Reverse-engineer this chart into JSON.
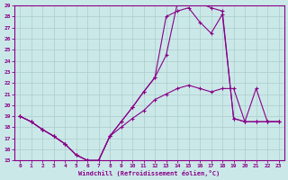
{
  "xlabel": "Windchill (Refroidissement éolien,°C)",
  "xlim": [
    -0.5,
    23.5
  ],
  "ylim": [
    15,
    29
  ],
  "xticks": [
    0,
    1,
    2,
    3,
    4,
    5,
    6,
    7,
    8,
    9,
    10,
    11,
    12,
    13,
    14,
    15,
    16,
    17,
    18,
    19,
    20,
    21,
    22,
    23
  ],
  "yticks": [
    15,
    16,
    17,
    18,
    19,
    20,
    21,
    22,
    23,
    24,
    25,
    26,
    27,
    28,
    29
  ],
  "bg_color": "#cbe8e8",
  "line_color": "#880088",
  "grid_color": "#aacccc",
  "line1_x": [
    0,
    1,
    2,
    3,
    4,
    5,
    6,
    7,
    8,
    9,
    10,
    11,
    12,
    13,
    14,
    15,
    16,
    17,
    18,
    19,
    20,
    21,
    22,
    23
  ],
  "line1_y": [
    19.0,
    18.5,
    17.8,
    17.2,
    16.5,
    15.5,
    15.0,
    15.0,
    17.2,
    18.5,
    19.8,
    21.2,
    22.5,
    24.5,
    29.2,
    29.2,
    29.2,
    28.8,
    28.5,
    18.8,
    18.5,
    21.5,
    18.5,
    18.5
  ],
  "line2_x": [
    0,
    1,
    2,
    3,
    4,
    5,
    6,
    7,
    8,
    9,
    10,
    11,
    12,
    13,
    14,
    15,
    16,
    17,
    18,
    19,
    20,
    21,
    22,
    23
  ],
  "line2_y": [
    19.0,
    18.5,
    17.8,
    17.2,
    16.5,
    15.5,
    15.0,
    15.0,
    17.2,
    18.5,
    19.8,
    21.2,
    22.5,
    28.0,
    28.5,
    28.8,
    27.5,
    26.5,
    28.2,
    18.8,
    18.5,
    18.5,
    18.5,
    18.5
  ],
  "line3_x": [
    0,
    1,
    2,
    3,
    4,
    5,
    6,
    7,
    8,
    9,
    10,
    11,
    12,
    13,
    14,
    15,
    16,
    17,
    18,
    19,
    20,
    21,
    22,
    23
  ],
  "line3_y": [
    19.0,
    18.5,
    17.8,
    17.2,
    16.5,
    15.5,
    15.0,
    15.0,
    17.2,
    18.0,
    18.8,
    19.5,
    20.5,
    21.0,
    21.5,
    21.8,
    21.5,
    21.2,
    21.5,
    21.5,
    18.5,
    18.5,
    18.5,
    18.5
  ]
}
